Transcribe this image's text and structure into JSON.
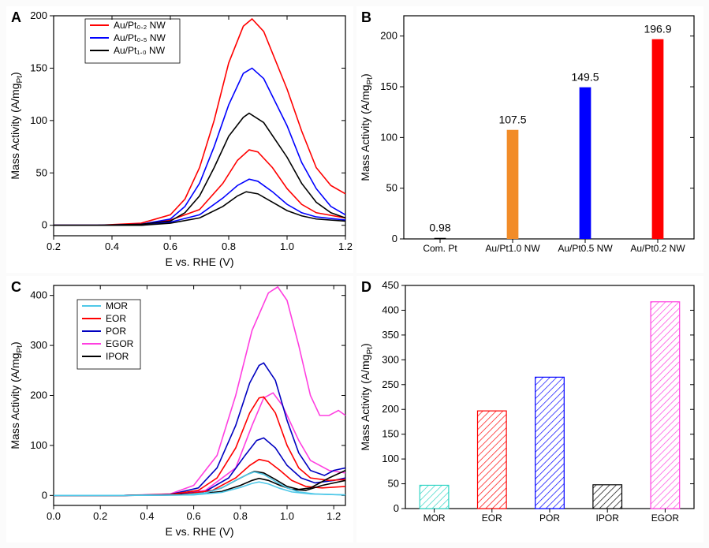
{
  "panelA": {
    "letter": "A",
    "type": "line",
    "xlabel": "E vs. RHE (V)",
    "ylabel": "Mass Activity (A/mg",
    "ylabel_sub": "Pt",
    "ylabel_tail": ")",
    "xlim": [
      0.2,
      1.2
    ],
    "ylim": [
      -10,
      200
    ],
    "xticks": [
      0.2,
      0.4,
      0.6,
      0.8,
      1.0,
      1.2
    ],
    "yticks": [
      0,
      50,
      100,
      150,
      200
    ],
    "background": "#ffffff",
    "axis_color": "#000000",
    "legend": [
      {
        "label": "Au/Pt₀.₂ NW",
        "color": "#ff0000"
      },
      {
        "label": "Au/Pt₀.₅ NW",
        "color": "#0000ff"
      },
      {
        "label": "Au/Pt₁.₀ NW",
        "color": "#000000"
      }
    ],
    "series": [
      {
        "color": "#ff0000",
        "pts": [
          [
            0.2,
            0
          ],
          [
            0.35,
            0
          ],
          [
            0.5,
            2
          ],
          [
            0.6,
            10
          ],
          [
            0.65,
            25
          ],
          [
            0.7,
            55
          ],
          [
            0.75,
            100
          ],
          [
            0.8,
            155
          ],
          [
            0.85,
            190
          ],
          [
            0.88,
            197
          ],
          [
            0.92,
            185
          ],
          [
            1.0,
            130
          ],
          [
            1.05,
            90
          ],
          [
            1.1,
            55
          ],
          [
            1.15,
            38
          ],
          [
            1.2,
            30
          ]
        ]
      },
      {
        "color": "#ff0000",
        "pts": [
          [
            0.2,
            0
          ],
          [
            0.35,
            0
          ],
          [
            0.5,
            1
          ],
          [
            0.6,
            5
          ],
          [
            0.7,
            15
          ],
          [
            0.78,
            40
          ],
          [
            0.83,
            62
          ],
          [
            0.87,
            72
          ],
          [
            0.9,
            70
          ],
          [
            0.95,
            55
          ],
          [
            1.0,
            35
          ],
          [
            1.05,
            20
          ],
          [
            1.1,
            12
          ],
          [
            1.2,
            7
          ]
        ]
      },
      {
        "color": "#0000ff",
        "pts": [
          [
            0.2,
            0
          ],
          [
            0.35,
            0
          ],
          [
            0.5,
            1
          ],
          [
            0.6,
            6
          ],
          [
            0.65,
            18
          ],
          [
            0.7,
            40
          ],
          [
            0.75,
            75
          ],
          [
            0.8,
            115
          ],
          [
            0.85,
            145
          ],
          [
            0.88,
            150
          ],
          [
            0.92,
            140
          ],
          [
            1.0,
            95
          ],
          [
            1.05,
            60
          ],
          [
            1.1,
            35
          ],
          [
            1.15,
            18
          ],
          [
            1.2,
            10
          ]
        ]
      },
      {
        "color": "#0000ff",
        "pts": [
          [
            0.2,
            0
          ],
          [
            0.35,
            0
          ],
          [
            0.5,
            0
          ],
          [
            0.6,
            3
          ],
          [
            0.7,
            10
          ],
          [
            0.78,
            26
          ],
          [
            0.83,
            38
          ],
          [
            0.87,
            44
          ],
          [
            0.9,
            42
          ],
          [
            0.95,
            32
          ],
          [
            1.0,
            20
          ],
          [
            1.05,
            12
          ],
          [
            1.1,
            8
          ],
          [
            1.2,
            5
          ]
        ]
      },
      {
        "color": "#000000",
        "pts": [
          [
            0.2,
            0
          ],
          [
            0.35,
            0
          ],
          [
            0.5,
            1
          ],
          [
            0.6,
            4
          ],
          [
            0.65,
            12
          ],
          [
            0.7,
            28
          ],
          [
            0.75,
            55
          ],
          [
            0.8,
            85
          ],
          [
            0.85,
            103
          ],
          [
            0.87,
            107
          ],
          [
            0.92,
            98
          ],
          [
            1.0,
            65
          ],
          [
            1.05,
            40
          ],
          [
            1.1,
            22
          ],
          [
            1.15,
            12
          ],
          [
            1.2,
            7
          ]
        ]
      },
      {
        "color": "#000000",
        "pts": [
          [
            0.2,
            0
          ],
          [
            0.35,
            0
          ],
          [
            0.5,
            0
          ],
          [
            0.6,
            2
          ],
          [
            0.7,
            7
          ],
          [
            0.78,
            18
          ],
          [
            0.83,
            28
          ],
          [
            0.86,
            32
          ],
          [
            0.9,
            30
          ],
          [
            0.95,
            22
          ],
          [
            1.0,
            14
          ],
          [
            1.05,
            9
          ],
          [
            1.1,
            6
          ],
          [
            1.2,
            4
          ]
        ]
      }
    ]
  },
  "panelB": {
    "letter": "B",
    "type": "bar",
    "ylabel": "Mass Activity (A/mg",
    "ylabel_sub": "Pt",
    "ylabel_tail": ")",
    "ylim": [
      0,
      220
    ],
    "yticks": [
      0,
      50,
      100,
      150,
      200
    ],
    "bar_width": 0.16,
    "background": "#ffffff",
    "categories": [
      "Com. Pt",
      "Au/Pt1.0 NW",
      "Au/Pt0.5 NW",
      "Au/Pt0.2 NW"
    ],
    "values": [
      0.98,
      107.5,
      149.5,
      196.9
    ],
    "labels": [
      "0.98",
      "107.5",
      "149.5",
      "196.9"
    ],
    "colors": [
      "#000000",
      "#f28c28",
      "#0000ff",
      "#ff0000"
    ]
  },
  "panelC": {
    "letter": "C",
    "type": "line",
    "xlabel": "E vs. RHE (V)",
    "ylabel": "Mass Activity (A/mg",
    "ylabel_sub": "Pt",
    "ylabel_tail": ")",
    "xlim": [
      0.0,
      1.25
    ],
    "ylim": [
      -20,
      420
    ],
    "xticks": [
      0.0,
      0.2,
      0.4,
      0.6,
      0.8,
      1.0,
      1.2
    ],
    "yticks": [
      0,
      100,
      200,
      300,
      400
    ],
    "background": "#ffffff",
    "legend": [
      {
        "label": "MOR",
        "color": "#4fc8e8"
      },
      {
        "label": "EOR",
        "color": "#ff0000"
      },
      {
        "label": "POR",
        "color": "#0000c0"
      },
      {
        "label": "EGOR",
        "color": "#ff3fe0"
      },
      {
        "label": "IPOR",
        "color": "#000000"
      }
    ],
    "series": [
      {
        "color": "#ff3fe0",
        "pts": [
          [
            0.0,
            0
          ],
          [
            0.3,
            0
          ],
          [
            0.5,
            3
          ],
          [
            0.6,
            20
          ],
          [
            0.7,
            80
          ],
          [
            0.78,
            200
          ],
          [
            0.85,
            330
          ],
          [
            0.92,
            405
          ],
          [
            0.96,
            417
          ],
          [
            1.0,
            390
          ],
          [
            1.05,
            300
          ],
          [
            1.1,
            200
          ],
          [
            1.14,
            160
          ],
          [
            1.18,
            160
          ],
          [
            1.22,
            170
          ],
          [
            1.25,
            160
          ]
        ]
      },
      {
        "color": "#ff3fe0",
        "pts": [
          [
            0.0,
            0
          ],
          [
            0.3,
            0
          ],
          [
            0.5,
            1
          ],
          [
            0.65,
            10
          ],
          [
            0.78,
            55
          ],
          [
            0.85,
            140
          ],
          [
            0.9,
            195
          ],
          [
            0.94,
            205
          ],
          [
            0.98,
            180
          ],
          [
            1.05,
            110
          ],
          [
            1.1,
            70
          ],
          [
            1.18,
            50
          ],
          [
            1.25,
            45
          ]
        ]
      },
      {
        "color": "#0000c0",
        "pts": [
          [
            0.0,
            0
          ],
          [
            0.3,
            0
          ],
          [
            0.5,
            2
          ],
          [
            0.62,
            15
          ],
          [
            0.7,
            55
          ],
          [
            0.78,
            140
          ],
          [
            0.84,
            225
          ],
          [
            0.88,
            260
          ],
          [
            0.9,
            265
          ],
          [
            0.95,
            230
          ],
          [
            1.0,
            150
          ],
          [
            1.05,
            85
          ],
          [
            1.1,
            50
          ],
          [
            1.16,
            40
          ],
          [
            1.2,
            50
          ],
          [
            1.25,
            55
          ]
        ]
      },
      {
        "color": "#0000c0",
        "pts": [
          [
            0.0,
            0
          ],
          [
            0.3,
            0
          ],
          [
            0.5,
            1
          ],
          [
            0.65,
            8
          ],
          [
            0.75,
            35
          ],
          [
            0.82,
            80
          ],
          [
            0.87,
            110
          ],
          [
            0.9,
            115
          ],
          [
            0.95,
            95
          ],
          [
            1.0,
            60
          ],
          [
            1.06,
            35
          ],
          [
            1.12,
            25
          ],
          [
            1.2,
            30
          ],
          [
            1.25,
            35
          ]
        ]
      },
      {
        "color": "#ff0000",
        "pts": [
          [
            0.0,
            0
          ],
          [
            0.3,
            0
          ],
          [
            0.5,
            2
          ],
          [
            0.62,
            10
          ],
          [
            0.7,
            35
          ],
          [
            0.78,
            95
          ],
          [
            0.84,
            165
          ],
          [
            0.88,
            195
          ],
          [
            0.9,
            197
          ],
          [
            0.95,
            165
          ],
          [
            1.0,
            100
          ],
          [
            1.05,
            55
          ],
          [
            1.1,
            35
          ],
          [
            1.18,
            30
          ],
          [
            1.25,
            32
          ]
        ]
      },
      {
        "color": "#ff0000",
        "pts": [
          [
            0.0,
            0
          ],
          [
            0.3,
            0
          ],
          [
            0.55,
            2
          ],
          [
            0.68,
            10
          ],
          [
            0.78,
            35
          ],
          [
            0.84,
            60
          ],
          [
            0.88,
            72
          ],
          [
            0.92,
            68
          ],
          [
            0.97,
            50
          ],
          [
            1.02,
            30
          ],
          [
            1.08,
            18
          ],
          [
            1.15,
            15
          ],
          [
            1.25,
            18
          ]
        ]
      },
      {
        "color": "#000000",
        "pts": [
          [
            0.0,
            0
          ],
          [
            0.3,
            0
          ],
          [
            0.55,
            1
          ],
          [
            0.65,
            5
          ],
          [
            0.72,
            15
          ],
          [
            0.78,
            30
          ],
          [
            0.83,
            42
          ],
          [
            0.86,
            48
          ],
          [
            0.9,
            45
          ],
          [
            0.95,
            32
          ],
          [
            1.0,
            18
          ],
          [
            1.05,
            12
          ],
          [
            1.1,
            15
          ],
          [
            1.18,
            35
          ],
          [
            1.25,
            50
          ]
        ]
      },
      {
        "color": "#000000",
        "pts": [
          [
            0.0,
            0
          ],
          [
            0.3,
            0
          ],
          [
            0.6,
            2
          ],
          [
            0.72,
            8
          ],
          [
            0.8,
            20
          ],
          [
            0.85,
            30
          ],
          [
            0.88,
            34
          ],
          [
            0.92,
            30
          ],
          [
            0.97,
            20
          ],
          [
            1.02,
            12
          ],
          [
            1.08,
            10
          ],
          [
            1.15,
            20
          ],
          [
            1.25,
            30
          ]
        ]
      },
      {
        "color": "#4fc8e8",
        "pts": [
          [
            0.0,
            0
          ],
          [
            0.3,
            0
          ],
          [
            0.55,
            1
          ],
          [
            0.65,
            5
          ],
          [
            0.72,
            15
          ],
          [
            0.78,
            30
          ],
          [
            0.83,
            42
          ],
          [
            0.86,
            47
          ],
          [
            0.9,
            42
          ],
          [
            0.95,
            28
          ],
          [
            1.0,
            15
          ],
          [
            1.05,
            7
          ],
          [
            1.12,
            3
          ],
          [
            1.25,
            1
          ]
        ]
      },
      {
        "color": "#4fc8e8",
        "pts": [
          [
            0.0,
            0
          ],
          [
            0.3,
            0
          ],
          [
            0.6,
            1
          ],
          [
            0.72,
            6
          ],
          [
            0.8,
            16
          ],
          [
            0.85,
            24
          ],
          [
            0.88,
            27
          ],
          [
            0.92,
            23
          ],
          [
            0.97,
            14
          ],
          [
            1.02,
            7
          ],
          [
            1.1,
            3
          ],
          [
            1.25,
            1
          ]
        ]
      }
    ]
  },
  "panelD": {
    "letter": "D",
    "type": "bar-hatched",
    "ylabel": "Mass Activity (A/mg",
    "ylabel_sub": "Pt",
    "ylabel_tail": ")",
    "ylim": [
      0,
      450
    ],
    "yticks": [
      0,
      50,
      100,
      150,
      200,
      250,
      300,
      350,
      400,
      450
    ],
    "bar_width": 0.5,
    "background": "#ffffff",
    "hatch_spacing": 6,
    "categories": [
      "MOR",
      "EOR",
      "POR",
      "IPOR",
      "EGOR"
    ],
    "values": [
      47,
      197,
      265,
      48,
      417
    ],
    "colors": [
      "#2dd4c4",
      "#ff0000",
      "#0000ff",
      "#000000",
      "#ff3fe0"
    ]
  }
}
